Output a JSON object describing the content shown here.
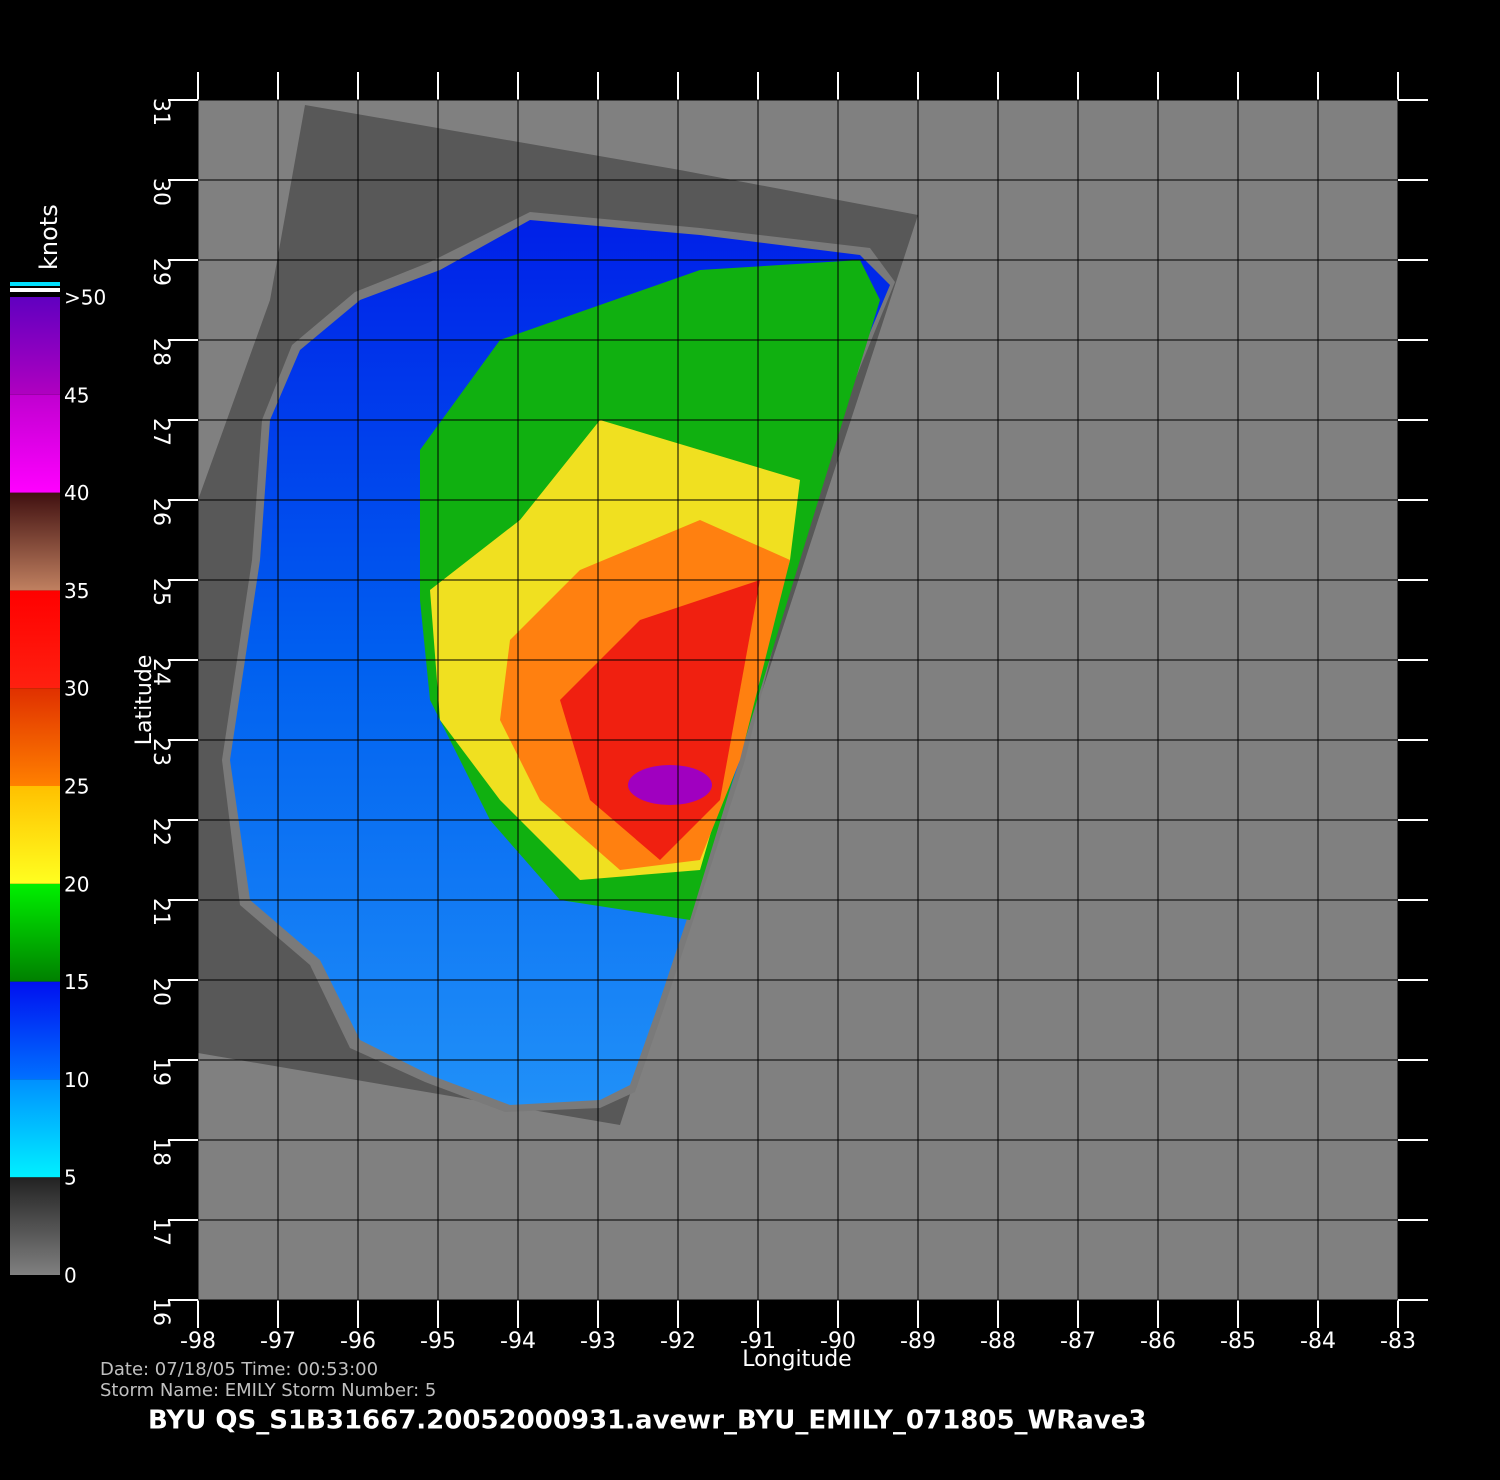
{
  "chart_data": {
    "type": "map",
    "title": "BYU  QS_S1B31667.20052000931.avewr_BYU_EMILY_071805_WRave3",
    "info": [
      "Date: 07/18/05   Time: 00:53:00",
      "Storm  Name:  EMILY    Storm  Number:  5"
    ],
    "x_label": "Longitude",
    "y_label": "Latitude",
    "xlim": [
      -98,
      -83
    ],
    "ylim": [
      16,
      31
    ],
    "xticks": [
      -98,
      -97,
      -96,
      -95,
      -94,
      -93,
      -92,
      -91,
      -90,
      -89,
      -88,
      -87,
      -86,
      -85,
      -84,
      -83
    ],
    "yticks": [
      16,
      17,
      18,
      19,
      20,
      21,
      22,
      23,
      24,
      25,
      26,
      27,
      28,
      29,
      30,
      31
    ],
    "grid": true,
    "colorbar": {
      "label": "knots",
      "ticks": [
        0,
        5,
        10,
        15,
        20,
        25,
        30,
        35,
        40,
        45,
        {
          "value": 50,
          "label": ">50"
        }
      ],
      "colors": [
        [
          "#808080",
          "#222222"
        ],
        [
          "#00f0ff",
          "#0090ff"
        ],
        [
          "#0070ff",
          "#0010f0"
        ],
        [
          "#008000",
          "#00f000"
        ],
        [
          "#ffff20",
          "#ffc000"
        ],
        [
          "#ff8000",
          "#e03000"
        ],
        [
          "#ff2010",
          "#ff0000"
        ],
        [
          "#c08060",
          "#401010"
        ],
        [
          "#ff00ff",
          "#c000d0"
        ],
        [
          "#b000c0",
          "#6000c0"
        ]
      ]
    }
  }
}
